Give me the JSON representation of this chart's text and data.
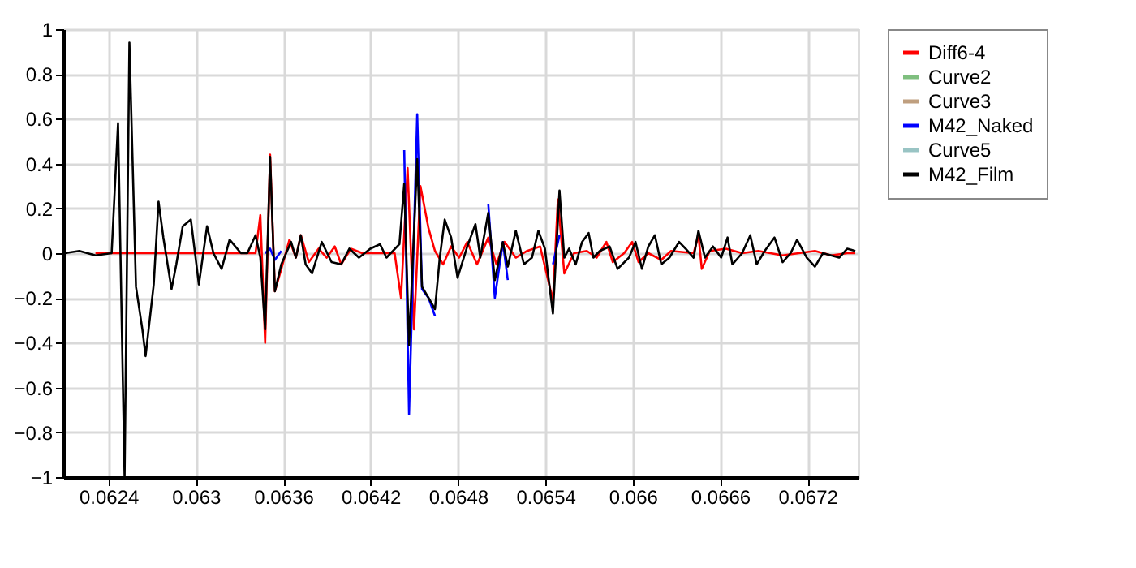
{
  "chart_data": {
    "type": "line",
    "xlim": [
      0.06209,
      0.06755
    ],
    "xticks": [
      0.0624,
      0.063,
      0.0636,
      0.0642,
      0.0648,
      0.0654,
      0.066,
      0.0666,
      0.0672
    ],
    "ylim": [
      -1,
      1
    ],
    "yticks": [
      -1,
      -0.8,
      -0.6,
      -0.4,
      -0.2,
      0,
      0.2,
      0.4,
      0.6,
      0.8,
      1
    ],
    "grid": true,
    "legend": "right",
    "line_style": "solid",
    "marker": "none",
    "series": [
      {
        "name": "Diff6-4",
        "color": "#ff0000",
        "x": [
          0.062311,
          0.062644,
          0.062977,
          0.06341,
          0.063443,
          0.063476,
          0.06351,
          0.063543,
          0.063587,
          0.063643,
          0.063687,
          0.063721,
          0.063776,
          0.063843,
          0.063899,
          0.063954,
          0.063998,
          0.064065,
          0.064143,
          0.064254,
          0.064365,
          0.064409,
          0.064454,
          0.064498,
          0.064542,
          0.064598,
          0.064642,
          0.064698,
          0.064753,
          0.064808,
          0.064864,
          0.064931,
          0.065008,
          0.065064,
          0.06512,
          0.065197,
          0.065275,
          0.065364,
          0.065452,
          0.065486,
          0.06553,
          0.065597,
          0.065685,
          0.065752,
          0.065819,
          0.065863,
          0.065941,
          0.065996,
          0.06604,
          0.066107,
          0.066196,
          0.066263,
          0.066418,
          0.066451,
          0.066474,
          0.066529,
          0.06664,
          0.066751,
          0.066862,
          0.067029,
          0.06714,
          0.067251,
          0.067362,
          0.067473,
          0.067528
        ],
        "values": [
          0,
          0,
          0,
          0,
          0.17,
          -0.4,
          0.44,
          -0.17,
          -0.07,
          0.06,
          -0.02,
          0.08,
          -0.04,
          0.02,
          -0.02,
          0.03,
          -0.05,
          0.02,
          0,
          0,
          0,
          -0.2,
          0.38,
          -0.34,
          0.3,
          0.11,
          0.01,
          -0.05,
          0.03,
          -0.02,
          0.05,
          -0.05,
          0.07,
          -0.05,
          0.05,
          -0.02,
          0.01,
          0.03,
          -0.21,
          0.24,
          -0.09,
          0,
          0.01,
          -0.02,
          0.05,
          -0.04,
          0,
          0.05,
          -0.04,
          0,
          -0.03,
          0.01,
          0,
          0.08,
          -0.07,
          0.01,
          0.02,
          0,
          0.01,
          -0.01,
          0,
          0.01,
          -0.01,
          0,
          0
        ]
      },
      {
        "name": "Curve2",
        "color": "#7fbf7f"
      },
      {
        "name": "Curve3",
        "color": "#bf9f7f"
      },
      {
        "name": "M42_Naked",
        "color": "#0000ff",
        "x": [
          0.063476,
          0.06351,
          0.063543,
          0.063587,
          0.064,
          0.064431,
          0.064464,
          0.06452,
          0.064553,
          0.064598,
          0.064642,
          0.0648,
          0.065008,
          0.065053,
          0.065108,
          0.065142,
          0.0653,
          0.065452,
          0.065497
        ],
        "values": [
          0,
          0.02,
          -0.03,
          0.01,
          null,
          0.46,
          -0.72,
          0.62,
          -0.16,
          -0.2,
          -0.28,
          null,
          0.22,
          -0.2,
          0.05,
          -0.12,
          null,
          -0.05,
          0.08
        ]
      },
      {
        "name": "Curve5",
        "color": "#99c4c4"
      },
      {
        "name": "M42_Film",
        "color": "#000000",
        "x": [
          0.0621,
          0.0622,
          0.062311,
          0.062422,
          0.062466,
          0.062511,
          0.062544,
          0.062589,
          0.062633,
          0.062655,
          0.062711,
          0.062744,
          0.062777,
          0.062833,
          0.062866,
          0.06291,
          0.062966,
          0.063021,
          0.063077,
          0.063121,
          0.063177,
          0.063232,
          0.06331,
          0.063354,
          0.06341,
          0.063443,
          0.063476,
          0.06351,
          0.063543,
          0.063587,
          0.063654,
          0.063687,
          0.063721,
          0.063754,
          0.063798,
          0.063865,
          0.063932,
          0.063998,
          0.064054,
          0.06412,
          0.064198,
          0.064265,
          0.064309,
          0.064398,
          0.064431,
          0.064464,
          0.06452,
          0.064553,
          0.064598,
          0.064642,
          0.064675,
          0.064709,
          0.064753,
          0.064797,
          0.064864,
          0.06492,
          0.064953,
          0.065008,
          0.065053,
          0.065108,
          0.065142,
          0.065197,
          0.065253,
          0.065308,
          0.065352,
          0.065397,
          0.065452,
          0.065497,
          0.06553,
          0.065563,
          0.065608,
          0.065652,
          0.065697,
          0.06573,
          0.065774,
          0.065841,
          0.065896,
          0.065974,
          0.066019,
          0.066063,
          0.066107,
          0.066152,
          0.066196,
          0.066252,
          0.066318,
          0.066363,
          0.066418,
          0.066451,
          0.066496,
          0.066551,
          0.066607,
          0.066651,
          0.066684,
          0.066751,
          0.066807,
          0.066851,
          0.066906,
          0.066973,
          0.067029,
          0.067084,
          0.067128,
          0.067195,
          0.067251,
          0.067306,
          0.067362,
          0.067417,
          0.067473,
          0.067528
        ],
        "values": [
          0,
          0.01,
          -0.01,
          0,
          0.58,
          -1.0,
          0.94,
          -0.15,
          -0.34,
          -0.46,
          -0.14,
          0.23,
          0.07,
          -0.16,
          -0.05,
          0.12,
          0.15,
          -0.14,
          0.12,
          0,
          -0.07,
          0.06,
          0,
          0,
          0.08,
          -0.02,
          -0.34,
          0.43,
          -0.17,
          -0.05,
          0.05,
          -0.02,
          0.08,
          -0.05,
          -0.09,
          0.05,
          -0.04,
          -0.05,
          0.02,
          -0.02,
          0.02,
          0.04,
          -0.02,
          0.04,
          0.31,
          -0.41,
          0.42,
          -0.15,
          -0.2,
          -0.25,
          -0.02,
          0.15,
          0.07,
          -0.11,
          0.03,
          0.13,
          -0.02,
          0.18,
          -0.12,
          0.05,
          -0.06,
          0.1,
          -0.05,
          -0.02,
          0.1,
          0.02,
          -0.27,
          0.28,
          -0.02,
          0.02,
          -0.05,
          0.05,
          0.09,
          -0.02,
          0.01,
          0.03,
          -0.07,
          -0.02,
          0.05,
          -0.07,
          0.03,
          0.08,
          -0.05,
          -0.02,
          0.05,
          0.02,
          -0.02,
          0.1,
          -0.02,
          0.03,
          -0.02,
          0.07,
          -0.05,
          0,
          0.08,
          -0.05,
          0.01,
          0.07,
          -0.04,
          0,
          0.06,
          -0.02,
          -0.06,
          0,
          -0.01,
          -0.02,
          0.02,
          0.01
        ]
      }
    ]
  }
}
